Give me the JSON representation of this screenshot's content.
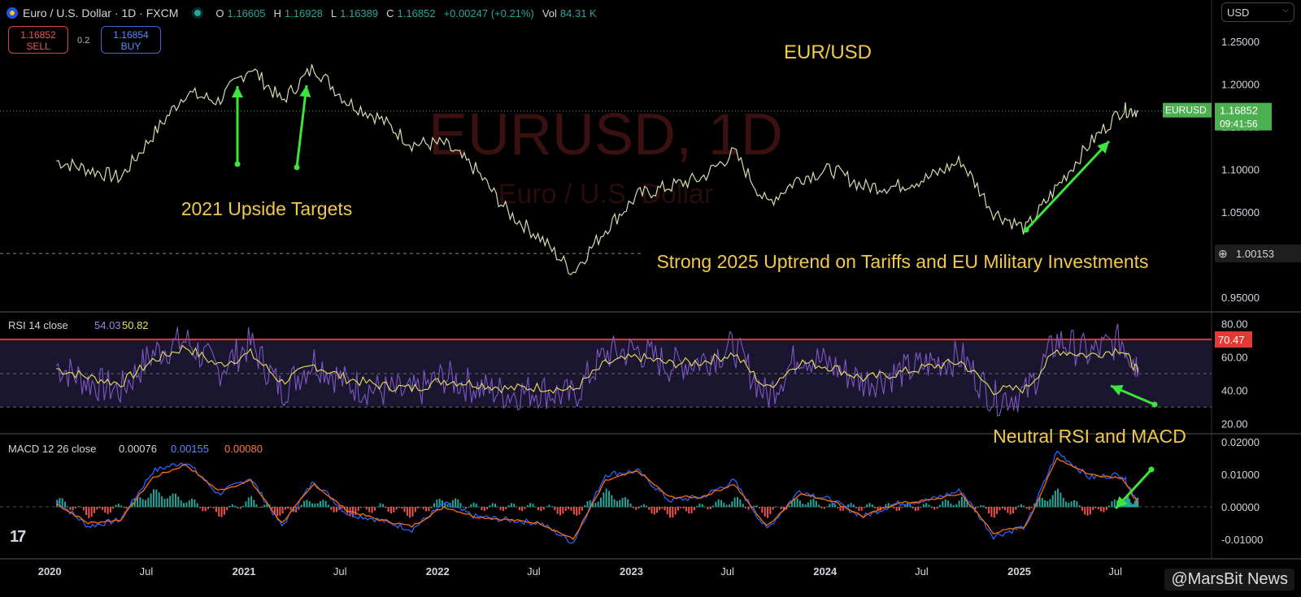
{
  "header": {
    "symbol": "Euro / U.S. Dollar · 1D · FXCM",
    "open_label": "O",
    "open": "1.16605",
    "high_label": "H",
    "high": "1.16928",
    "low_label": "L",
    "low": "1.16389",
    "close_label": "C",
    "close": "1.16852",
    "change": "+0.00247 (+0.21%)",
    "vol_label": "Vol",
    "vol": "84.31 K"
  },
  "trade": {
    "sell_price": "1.16852",
    "sell_label": "SELL",
    "spread": "0.2",
    "buy_price": "1.16854",
    "buy_label": "BUY"
  },
  "currency_menu": "USD",
  "watermark": "@MarsBit News",
  "chart_data": [
    {
      "type": "line",
      "title": "EUR/USD",
      "background_text": [
        "EURUSD, 1D",
        "Euro / U.S. Dollar"
      ],
      "x": [
        "2020-01",
        "2020-03",
        "2020-05",
        "2020-07",
        "2020-09",
        "2020-11",
        "2021-01",
        "2021-03",
        "2021-05",
        "2021-07",
        "2021-09",
        "2021-11",
        "2022-01",
        "2022-03",
        "2022-05",
        "2022-07",
        "2022-09",
        "2022-11",
        "2023-01",
        "2023-03",
        "2023-05",
        "2023-07",
        "2023-09",
        "2023-11",
        "2024-01",
        "2024-03",
        "2024-05",
        "2024-07",
        "2024-09",
        "2024-11",
        "2025-01",
        "2025-03",
        "2025-05",
        "2025-07",
        "2025-08"
      ],
      "y": [
        1.11,
        1.1,
        1.09,
        1.14,
        1.19,
        1.18,
        1.22,
        1.18,
        1.22,
        1.18,
        1.16,
        1.13,
        1.13,
        1.1,
        1.05,
        1.02,
        0.98,
        1.03,
        1.07,
        1.08,
        1.09,
        1.12,
        1.06,
        1.09,
        1.1,
        1.08,
        1.08,
        1.09,
        1.11,
        1.05,
        1.03,
        1.08,
        1.13,
        1.17,
        1.16852
      ],
      "yticks": [
        "0.95000",
        "1.00000",
        "1.05000",
        "1.10000",
        "1.15000",
        "1.20000",
        "1.25000"
      ],
      "ylim": [
        0.935,
        1.27
      ],
      "xticks": [
        "2020",
        "Jul",
        "2021",
        "Jul",
        "2022",
        "Jul",
        "2023",
        "Jul",
        "2024",
        "Jul",
        "2025",
        "Jul"
      ],
      "price_tag": {
        "label": "EURUSD",
        "value": "1.16852",
        "countdown": "09:41:56"
      },
      "crosshair_label": "1.00153",
      "annotations": [
        "2021 Upside Targets",
        "Strong 2025 Uptrend on Tariffs and EU Military Investments"
      ]
    },
    {
      "type": "line",
      "title": "RSI 14 close",
      "legend": [
        "54.03",
        "50.82"
      ],
      "x": [
        "2020-01",
        "2020-03",
        "2020-05",
        "2020-07",
        "2020-09",
        "2020-11",
        "2021-01",
        "2021-03",
        "2021-05",
        "2021-07",
        "2021-09",
        "2021-11",
        "2022-01",
        "2022-03",
        "2022-05",
        "2022-07",
        "2022-09",
        "2022-11",
        "2023-01",
        "2023-03",
        "2023-05",
        "2023-07",
        "2023-09",
        "2023-11",
        "2024-01",
        "2024-03",
        "2024-05",
        "2024-07",
        "2024-09",
        "2024-11",
        "2025-01",
        "2025-03",
        "2025-05",
        "2025-07",
        "2025-08"
      ],
      "series": [
        {
          "values": [
            55,
            45,
            40,
            62,
            70,
            52,
            68,
            40,
            58,
            44,
            40,
            38,
            48,
            42,
            38,
            40,
            36,
            62,
            64,
            55,
            58,
            66,
            36,
            62,
            55,
            45,
            50,
            56,
            60,
            35,
            38,
            70,
            62,
            70,
            54
          ]
        },
        {
          "values": [
            53,
            48,
            44,
            58,
            66,
            55,
            62,
            45,
            55,
            47,
            43,
            41,
            46,
            44,
            41,
            42,
            40,
            56,
            60,
            56,
            57,
            62,
            41,
            57,
            54,
            47,
            50,
            54,
            57,
            40,
            41,
            64,
            61,
            65,
            50.82
          ]
        }
      ],
      "yticks": [
        "20.00",
        "40.00",
        "60.00",
        "80.00"
      ],
      "ylim": [
        15,
        85
      ],
      "overbought_value": "70.47",
      "annotations": [
        "Neutral RSI and MACD"
      ]
    },
    {
      "type": "line",
      "title": "MACD 12 26 close",
      "legend": [
        "0.00076",
        "0.00155",
        "0.00080"
      ],
      "x": [
        "2020-01",
        "2020-03",
        "2020-05",
        "2020-07",
        "2020-09",
        "2020-11",
        "2021-01",
        "2021-03",
        "2021-05",
        "2021-07",
        "2021-09",
        "2021-11",
        "2022-01",
        "2022-03",
        "2022-05",
        "2022-07",
        "2022-09",
        "2022-11",
        "2023-01",
        "2023-03",
        "2023-05",
        "2023-07",
        "2023-09",
        "2023-11",
        "2024-01",
        "2024-03",
        "2024-05",
        "2024-07",
        "2024-09",
        "2024-11",
        "2025-01",
        "2025-03",
        "2025-05",
        "2025-07",
        "2025-08"
      ],
      "series": [
        {
          "values": [
            0.002,
            -0.006,
            -0.004,
            0.011,
            0.014,
            0.004,
            0.009,
            -0.006,
            0.008,
            -0.002,
            -0.004,
            -0.007,
            0.001,
            -0.003,
            -0.004,
            -0.005,
            -0.011,
            0.01,
            0.011,
            0.002,
            0.003,
            0.008,
            -0.007,
            0.005,
            0.002,
            -0.003,
            0.001,
            0.002,
            0.005,
            -0.009,
            -0.006,
            0.017,
            0.009,
            0.01,
            0.00155
          ]
        },
        {
          "values": [
            0.001,
            -0.005,
            -0.004,
            0.009,
            0.013,
            0.005,
            0.008,
            -0.005,
            0.007,
            -0.001,
            -0.004,
            -0.006,
            0.0,
            -0.003,
            -0.004,
            -0.005,
            -0.01,
            0.008,
            0.011,
            0.003,
            0.003,
            0.007,
            -0.006,
            0.004,
            0.002,
            -0.003,
            0.001,
            0.002,
            0.004,
            -0.008,
            -0.006,
            0.015,
            0.01,
            0.009,
            0.0008
          ]
        }
      ],
      "yticks": [
        "-0.01000",
        "0.00000",
        "0.01000",
        "0.02000"
      ],
      "ylim": [
        -0.014,
        0.022
      ]
    }
  ],
  "colors": {
    "price": "#d7dcb0",
    "rsi": "#7e57c2",
    "rsi_ma": "#e8e05a",
    "macd": "#2962ff",
    "signal": "#ff6d00",
    "annot": "#f2c94c",
    "arrow": "#3ce43c",
    "upbar": "#26a69a",
    "downbar": "#ef5350",
    "obline": "#e53935"
  }
}
